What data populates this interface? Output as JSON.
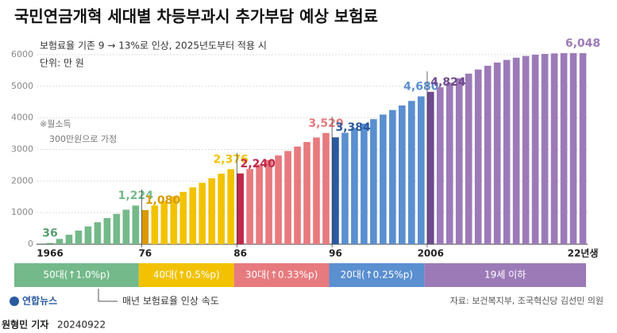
{
  "chart_data": {
    "type": "bar",
    "title": "국민연금개혁 세대별 차등부과시 추가부담 예상 보험료",
    "subtitle": "보험료율 기존 9 → 13%로 인상, 2025년도부터 적용 시",
    "unit": "단위: 만 원",
    "annotation": [
      "※월소득",
      "300만원으로 가정"
    ],
    "legend_note": "매년 보험료율 인상 속도",
    "source": "자료: 보건복지부, 조국혁신당 김선민 의원",
    "logo": "연합뉴스",
    "byline": "원형민 기자",
    "date": "20240922",
    "categories": [
      "1966",
      null,
      null,
      null,
      null,
      null,
      null,
      null,
      null,
      null,
      "76",
      null,
      null,
      null,
      null,
      null,
      null,
      null,
      null,
      null,
      "86",
      null,
      null,
      null,
      null,
      null,
      null,
      null,
      null,
      null,
      "96",
      null,
      null,
      null,
      null,
      null,
      null,
      null,
      null,
      null,
      "2006",
      null,
      null,
      null,
      null,
      null,
      null,
      null,
      null,
      null,
      null,
      null,
      null,
      null,
      null,
      null,
      "22년생"
    ],
    "ylim": [
      0,
      6200
    ],
    "yticks": [
      0,
      1000,
      2000,
      3000,
      4000,
      5000,
      6000
    ],
    "grid": true,
    "series": [
      {
        "name": "50대(↑1.0%p)",
        "color": "#74b98a",
        "first_color": "#5a9e6e",
        "values": [
          36,
          168,
          300,
          432,
          564,
          696,
          828,
          960,
          1092,
          1224,
          null,
          null,
          null,
          null,
          null,
          null,
          null,
          null,
          null,
          null,
          null,
          null,
          null,
          null,
          null,
          null,
          null,
          null,
          null,
          null,
          null,
          null,
          null,
          null,
          null,
          null,
          null,
          null,
          null,
          null,
          null,
          null,
          null,
          null,
          null,
          null,
          null,
          null,
          null,
          null,
          null,
          null,
          null,
          null,
          null,
          null,
          null
        ],
        "value_labels": [
          "36",
          null,
          null,
          null,
          null,
          null,
          null,
          null,
          null,
          "1,224",
          null,
          null,
          null,
          null,
          null,
          null,
          null,
          null,
          null,
          null,
          null,
          null,
          null,
          null,
          null,
          null,
          null,
          null,
          null,
          null,
          null,
          null,
          null,
          null,
          null,
          null,
          null,
          null,
          null,
          null,
          null,
          null,
          null,
          null,
          null,
          null,
          null,
          null,
          null,
          null,
          null,
          null,
          null,
          null,
          null,
          null,
          null
        ]
      },
      {
        "name": "40대(↑0.5%p)",
        "color": "#f2c200",
        "first_color": "#d99a00",
        "values": [
          null,
          null,
          null,
          null,
          null,
          null,
          null,
          null,
          null,
          null,
          1080,
          1224,
          1368,
          1512,
          1656,
          1800,
          1944,
          2088,
          2232,
          2376,
          null,
          null,
          null,
          null,
          null,
          null,
          null,
          null,
          null,
          null,
          null,
          null,
          null,
          null,
          null,
          null,
          null,
          null,
          null,
          null,
          null,
          null,
          null,
          null,
          null,
          null,
          null,
          null,
          null,
          null,
          null,
          null,
          null,
          null,
          null,
          null,
          null
        ],
        "value_labels": [
          null,
          null,
          null,
          null,
          null,
          null,
          null,
          null,
          null,
          null,
          "1,080",
          null,
          null,
          null,
          null,
          null,
          null,
          null,
          null,
          "2,376",
          null,
          null,
          null,
          null,
          null,
          null,
          null,
          null,
          null,
          null,
          null,
          null,
          null,
          null,
          null,
          null,
          null,
          null,
          null,
          null,
          null,
          null,
          null,
          null,
          null,
          null,
          null,
          null,
          null,
          null,
          null,
          null,
          null,
          null,
          null,
          null,
          null
        ]
      },
      {
        "name": "30대(↑0.33%p)",
        "color": "#e77a7e",
        "first_color": "#c0284a",
        "values": [
          null,
          null,
          null,
          null,
          null,
          null,
          null,
          null,
          null,
          null,
          null,
          null,
          null,
          null,
          null,
          null,
          null,
          null,
          null,
          null,
          2240,
          2382,
          2524,
          2667,
          2809,
          2951,
          3093,
          3236,
          3378,
          3520,
          null,
          null,
          null,
          null,
          null,
          null,
          null,
          null,
          null,
          null,
          null,
          null,
          null,
          null,
          null,
          null,
          null,
          null,
          null,
          null,
          null,
          null,
          null,
          null,
          null,
          null,
          null
        ],
        "value_labels": [
          null,
          null,
          null,
          null,
          null,
          null,
          null,
          null,
          null,
          null,
          null,
          null,
          null,
          null,
          null,
          null,
          null,
          null,
          null,
          null,
          "2,240",
          null,
          null,
          null,
          null,
          null,
          null,
          null,
          null,
          "3,520",
          null,
          null,
          null,
          null,
          null,
          null,
          null,
          null,
          null,
          null,
          null,
          null,
          null,
          null,
          null,
          null,
          null,
          null,
          null,
          null,
          null,
          null,
          null,
          null,
          null,
          null,
          null
        ]
      },
      {
        "name": "20대(↑0.25%p)",
        "color": "#5a8fd0",
        "first_color": "#2a5aa0",
        "values": [
          null,
          null,
          null,
          null,
          null,
          null,
          null,
          null,
          null,
          null,
          null,
          null,
          null,
          null,
          null,
          null,
          null,
          null,
          null,
          null,
          null,
          null,
          null,
          null,
          null,
          null,
          null,
          null,
          null,
          null,
          3384,
          3528,
          3672,
          3816,
          3960,
          4104,
          4248,
          4392,
          4536,
          4680,
          null,
          null,
          null,
          null,
          null,
          null,
          null,
          null,
          null,
          null,
          null,
          null,
          null,
          null,
          null,
          null,
          null
        ],
        "value_labels": [
          null,
          null,
          null,
          null,
          null,
          null,
          null,
          null,
          null,
          null,
          null,
          null,
          null,
          null,
          null,
          null,
          null,
          null,
          null,
          null,
          null,
          null,
          null,
          null,
          null,
          null,
          null,
          null,
          null,
          null,
          "3,384",
          null,
          null,
          null,
          null,
          null,
          null,
          null,
          null,
          "4,680",
          null,
          null,
          null,
          null,
          null,
          null,
          null,
          null,
          null,
          null,
          null,
          null,
          null,
          null,
          null,
          null,
          null
        ]
      },
      {
        "name": "19세 이하",
        "color": "#9c7ab8",
        "first_color": "#6e4a8e",
        "values": [
          null,
          null,
          null,
          null,
          null,
          null,
          null,
          null,
          null,
          null,
          null,
          null,
          null,
          null,
          null,
          null,
          null,
          null,
          null,
          null,
          null,
          null,
          null,
          null,
          null,
          null,
          null,
          null,
          null,
          null,
          null,
          null,
          null,
          null,
          null,
          null,
          null,
          null,
          null,
          null,
          4824,
          4968,
          5112,
          5256,
          5400,
          5530,
          5650,
          5750,
          5835,
          5905,
          5960,
          6000,
          6025,
          6040,
          6048,
          6048,
          6048
        ],
        "value_labels": [
          null,
          null,
          null,
          null,
          null,
          null,
          null,
          null,
          null,
          null,
          null,
          null,
          null,
          null,
          null,
          null,
          null,
          null,
          null,
          null,
          null,
          null,
          null,
          null,
          null,
          null,
          null,
          null,
          null,
          null,
          null,
          null,
          null,
          null,
          null,
          null,
          null,
          null,
          null,
          null,
          "4,824",
          null,
          null,
          null,
          null,
          null,
          null,
          null,
          null,
          null,
          null,
          null,
          null,
          null,
          null,
          null,
          "6,048"
        ]
      }
    ]
  }
}
